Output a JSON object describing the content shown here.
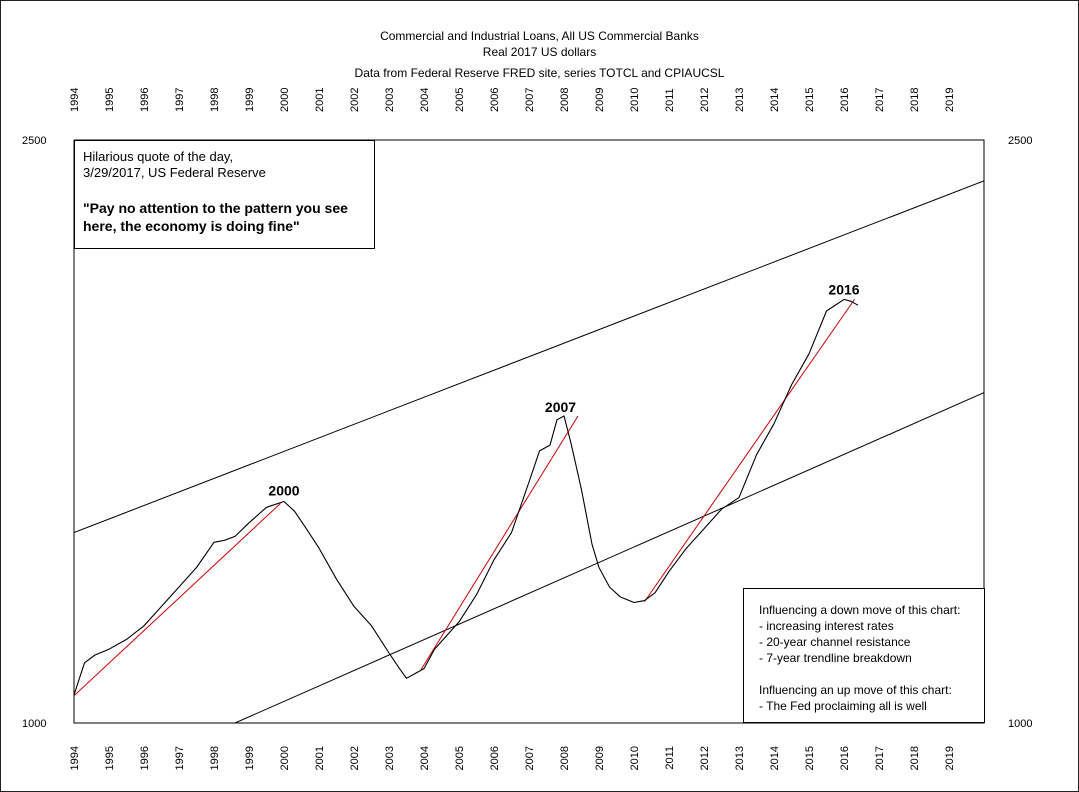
{
  "chart_data": {
    "type": "line",
    "title": "Commercial and Industrial Loans, All US Commercial Banks",
    "subtitle": "Real 2017 US dollars",
    "source_note": "Data from Federal Reserve FRED site, series TOTCL and CPIAUCSL",
    "xlabel": "",
    "ylabel": "",
    "xlim": [
      1994,
      2020
    ],
    "ylim": [
      1000,
      2500
    ],
    "y_ticks_left": [
      "2500",
      "1000"
    ],
    "y_ticks_right": [
      "2500",
      "1000"
    ],
    "x_tick_labels": [
      "1994",
      "1995",
      "1996",
      "1997",
      "1998",
      "1999",
      "2000",
      "2001",
      "2002",
      "2003",
      "2004",
      "2005",
      "2006",
      "2007",
      "2008",
      "2009",
      "2010",
      "2011",
      "2012",
      "2013",
      "2014",
      "2015",
      "2016",
      "2017",
      "2018",
      "2019"
    ],
    "grid": false,
    "series": [
      {
        "color": "#000000",
        "x": [
          1994.0,
          1994.3,
          1994.6,
          1995.0,
          1995.5,
          1996.0,
          1996.5,
          1997.0,
          1997.5,
          1998.0,
          1998.3,
          1998.6,
          1999.0,
          1999.5,
          2000.0,
          2000.3,
          2000.6,
          2001.0,
          2001.5,
          2002.0,
          2002.5,
          2003.0,
          2003.3,
          2003.5,
          2003.8,
          2004.0,
          2004.3,
          2004.6,
          2005.0,
          2005.5,
          2006.0,
          2006.5,
          2007.0,
          2007.3,
          2007.6,
          2007.8,
          2008.0,
          2008.2,
          2008.5,
          2008.8,
          2009.0,
          2009.3,
          2009.6,
          2010.0,
          2010.3,
          2010.6,
          2011.0,
          2011.5,
          2012.0,
          2012.5,
          2013.0,
          2013.5,
          2014.0,
          2014.5,
          2015.0,
          2015.5,
          2016.0,
          2016.2,
          2016.4
        ],
        "y": [
          1072,
          1155,
          1175,
          1190,
          1215,
          1250,
          1300,
          1350,
          1400,
          1465,
          1470,
          1480,
          1515,
          1555,
          1570,
          1545,
          1505,
          1450,
          1370,
          1300,
          1250,
          1180,
          1140,
          1115,
          1130,
          1140,
          1190,
          1220,
          1260,
          1330,
          1420,
          1490,
          1620,
          1700,
          1715,
          1780,
          1790,
          1720,
          1600,
          1460,
          1400,
          1350,
          1325,
          1310,
          1315,
          1335,
          1390,
          1450,
          1500,
          1550,
          1580,
          1690,
          1770,
          1870,
          1950,
          2060,
          2090,
          2085,
          2075
        ]
      }
    ],
    "trend_lines": [
      {
        "name": "channel-top",
        "color": "#000000",
        "x": [
          1994.0,
          2020.0
        ],
        "y": [
          1490,
          2395
        ]
      },
      {
        "name": "channel-bottom",
        "color": "#000000",
        "x": [
          1998.6,
          2020.0
        ],
        "y": [
          1000,
          1850
        ]
      },
      {
        "name": "trend-1994-2000",
        "color": "#cc0000",
        "x": [
          1994.0,
          1999.9
        ],
        "y": [
          1070,
          1565
        ]
      },
      {
        "name": "trend-2003-2007",
        "color": "#cc0000",
        "x": [
          2003.9,
          2008.4
        ],
        "y": [
          1135,
          1790
        ]
      },
      {
        "name": "trend-2010-2016",
        "color": "#cc0000",
        "x": [
          2010.3,
          2016.3
        ],
        "y": [
          1312,
          2090
        ]
      }
    ],
    "annotations": [
      {
        "text": "2000",
        "x": 2000.0,
        "y": 1585
      },
      {
        "text": "2007",
        "x": 2007.9,
        "y": 1800
      },
      {
        "text": "2016",
        "x": 2016.0,
        "y": 2102
      }
    ]
  },
  "quote_box": {
    "line1": "Hilarious quote of the day,",
    "line2": "3/29/2017, US Federal Reserve",
    "line3": "\"Pay no attention to the pattern you see",
    "line4": "here, the economy is doing fine\""
  },
  "info_box": {
    "line1": "Influencing a down move of this chart:",
    "line2": "- increasing interest rates",
    "line3": "- 20-year channel resistance",
    "line4": "- 7-year trendline breakdown",
    "line5": "Influencing an up move of this chart:",
    "line6": "- The Fed proclaiming all is well"
  }
}
